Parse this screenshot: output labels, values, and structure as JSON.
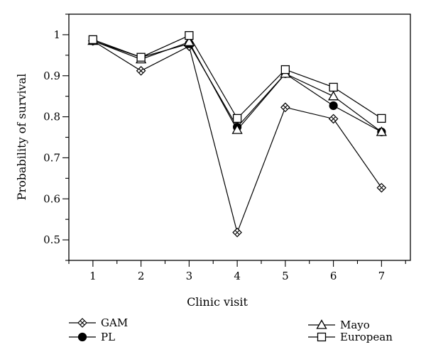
{
  "chart_data": {
    "type": "line",
    "title": "",
    "xlabel": "Clinic visit",
    "ylabel": "Probability of survival",
    "x": [
      1,
      2,
      3,
      4,
      5,
      6,
      7
    ],
    "x_ticks": [
      "1",
      "2",
      "3",
      "4",
      "5",
      "6",
      "7"
    ],
    "xlim": [
      0.5,
      7.6
    ],
    "ylim": [
      0.45,
      1.05
    ],
    "y_ticks": [
      "0.5",
      "0.6",
      "0.7",
      "0.8",
      "0.9",
      "1"
    ],
    "grid": false,
    "legend_position": "bottom",
    "series": [
      {
        "name": "GAM",
        "marker": "crossed-diamond",
        "values": [
          0.985,
          0.912,
          0.972,
          0.518,
          0.823,
          0.795,
          0.627
        ]
      },
      {
        "name": "PL",
        "marker": "filled-circle",
        "values": [
          0.985,
          0.945,
          0.978,
          0.775,
          0.905,
          0.827,
          0.763
        ]
      },
      {
        "name": "Mayo",
        "marker": "triangle",
        "values": [
          0.985,
          0.94,
          0.982,
          0.768,
          0.905,
          0.85,
          0.763
        ]
      },
      {
        "name": "European",
        "marker": "square",
        "values": [
          0.988,
          0.945,
          0.998,
          0.796,
          0.915,
          0.872,
          0.796
        ]
      }
    ]
  }
}
